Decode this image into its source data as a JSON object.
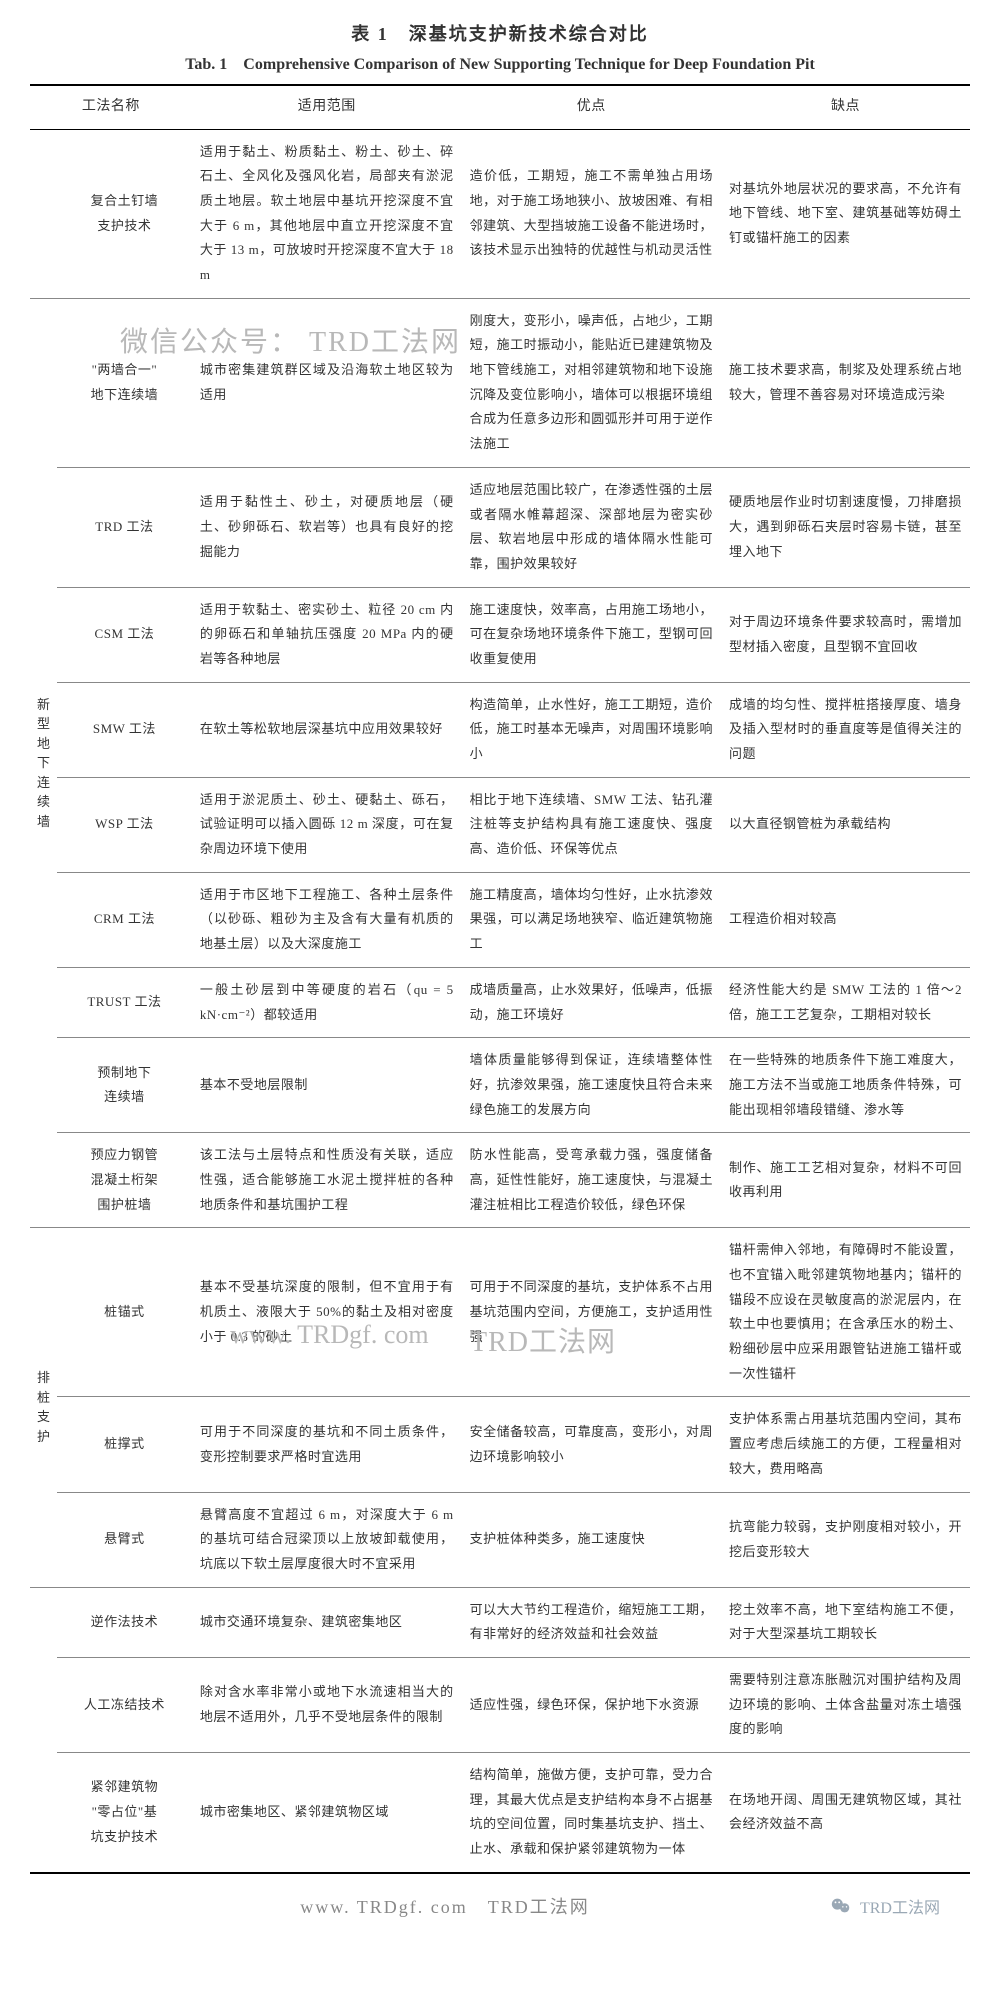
{
  "title_cn": "表 1　深基坑支护新技术综合对比",
  "title_en": "Tab. 1　Comprehensive Comparison of New Supporting Technique for Deep Foundation Pit",
  "headers": {
    "name": "工法名称",
    "scope": "适用范围",
    "advantages": "优点",
    "disadvantages": "缺点"
  },
  "groups": [
    {
      "label": null,
      "rows": [
        {
          "name": "复合土钉墙支护技术",
          "scope": "适用于黏土、粉质黏土、粉土、砂土、碎石土、全风化及强风化岩，局部夹有淤泥质土地层。软土地层中基坑开挖深度不宜大于 6 m，其他地层中直立开挖深度不宜大于 13 m，可放坡时开挖深度不宜大于 18 m",
          "adv": "造价低，工期短，施工不需单独占用场地，对于施工场地狭小、放坡困难、有相邻建筑、大型挡坡施工设备不能进场时，该技术显示出独特的优越性与机动灵活性",
          "dis": "对基坑外地层状况的要求高，不允许有地下管线、地下室、建筑基础等妨碍土钉或锚杆施工的因素"
        }
      ]
    },
    {
      "label": "新型地下连续墙",
      "rows": [
        {
          "name": "\"两墙合一\"地下连续墙",
          "scope": "城市密集建筑群区域及沿海软土地区较为适用",
          "adv": "刚度大，变形小，噪声低，占地少，工期短，施工时振动小，能贴近已建建筑物及地下管线施工，对相邻建筑物和地下设施沉降及变位影响小，墙体可以根据环境组合成为任意多边形和圆弧形并可用于逆作法施工",
          "dis": "施工技术要求高，制浆及处理系统占地较大，管理不善容易对环境造成污染"
        },
        {
          "name": "TRD 工法",
          "scope": "适用于黏性土、砂土，对硬质地层（硬土、砂卵砾石、软岩等）也具有良好的挖掘能力",
          "adv": "适应地层范围比较广，在渗透性强的土层或者隔水帷幕超深、深部地层为密实砂层、软岩地层中形成的墙体隔水性能可靠，围护效果较好",
          "dis": "硬质地层作业时切割速度慢，刀排磨损大，遇到卵砾石夹层时容易卡链，甚至埋入地下"
        },
        {
          "name": "CSM 工法",
          "scope": "适用于软黏土、密实砂土、粒径 20 cm 内的卵砾石和单轴抗压强度 20 MPa 内的硬岩等各种地层",
          "adv": "施工速度快，效率高，占用施工场地小，可在复杂场地环境条件下施工，型钢可回收重复使用",
          "dis": "对于周边环境条件要求较高时，需增加型材插入密度，且型钢不宜回收"
        },
        {
          "name": "SMW 工法",
          "scope": "在软土等松软地层深基坑中应用效果较好",
          "adv": "构造简单，止水性好，施工工期短，造价低，施工时基本无噪声，对周围环境影响小",
          "dis": "成墙的均匀性、搅拌桩搭接厚度、墙身及插入型材时的垂直度等是值得关注的问题"
        },
        {
          "name": "WSP 工法",
          "scope": "适用于淤泥质土、砂土、硬黏土、砾石，试验证明可以插入圆砾 12 m 深度，可在复杂周边环境下使用",
          "adv": "相比于地下连续墙、SMW 工法、钻孔灌注桩等支护结构具有施工速度快、强度高、造价低、环保等优点",
          "dis": "以大直径钢管桩为承载结构"
        },
        {
          "name": "CRM 工法",
          "scope": "适用于市区地下工程施工、各种土层条件（以砂砾、粗砂为主及含有大量有机质的地基土层）以及大深度施工",
          "adv": "施工精度高，墙体均匀性好，止水抗渗效果强，可以满足场地狭窄、临近建筑物施工",
          "dis": "工程造价相对较高"
        },
        {
          "name": "TRUST 工法",
          "scope": "一般土砂层到中等硬度的岩石（qu = 5 kN·cm⁻²）都较适用",
          "adv": "成墙质量高，止水效果好，低噪声，低振动，施工环境好",
          "dis": "经济性能大约是 SMW 工法的 1 倍～2 倍，施工工艺复杂，工期相对较长"
        },
        {
          "name": "预制地下连续墙",
          "scope": "基本不受地层限制",
          "adv": "墙体质量能够得到保证，连续墙整体性好，抗渗效果强，施工速度快且符合未来绿色施工的发展方向",
          "dis": "在一些特殊的地质条件下施工难度大，施工方法不当或施工地质条件特殊，可能出现相邻墙段错缝、渗水等"
        },
        {
          "name": "预应力钢管混凝土桁架围护桩墙",
          "scope": "该工法与土层特点和性质没有关联，适应性强，适合能够施工水泥土搅拌桩的各种地质条件和基坑围护工程",
          "adv": "防水性能高，受弯承载力强，强度储备高，延性性能好，施工速度快，与混凝土灌注桩相比工程造价较低，绿色环保",
          "dis": "制作、施工工艺相对复杂，材料不可回收再利用"
        }
      ]
    },
    {
      "label": "排桩支护",
      "rows": [
        {
          "name": "桩锚式",
          "scope": "基本不受基坑深度的限制，但不宜用于有机质土、液限大于 50%的黏土及相对密度小于 0.3 的砂土",
          "adv": "可用于不同深度的基坑，支护体系不占用基坑范围内空间，方便施工，支护适用性强",
          "dis": "锚杆需伸入邻地，有障碍时不能设置，也不宜锚入毗邻建筑物地基内；锚杆的锚段不应设在灵敏度高的淤泥层内，在软土中也要慎用；在含承压水的粉土、粉细砂层中应采用跟管钻进施工锚杆或一次性锚杆"
        },
        {
          "name": "桩撑式",
          "scope": "可用于不同深度的基坑和不同土质条件，变形控制要求严格时宜选用",
          "adv": "安全储备较高，可靠度高，变形小，对周边环境影响较小",
          "dis": "支护体系需占用基坑范围内空间，其布置应考虑后续施工的方便，工程量相对较大，费用略高"
        },
        {
          "name": "悬臂式",
          "scope": "悬臂高度不宜超过 6 m，对深度大于 6 m 的基坑可结合冠梁顶以上放坡卸载使用，坑底以下软土层厚度很大时不宜采用",
          "adv": "支护桩体种类多，施工速度快",
          "dis": "抗弯能力较弱，支护刚度相对较小，开挖后变形较大"
        }
      ]
    },
    {
      "label": null,
      "rows": [
        {
          "name": "逆作法技术",
          "scope": "城市交通环境复杂、建筑密集地区",
          "adv": "可以大大节约工程造价，缩短施工工期，有非常好的经济效益和社会效益",
          "dis": "挖土效率不高，地下室结构施工不便，对于大型深基坑工期较长"
        },
        {
          "name": "人工冻结技术",
          "scope": "除对含水率非常小或地下水流速相当大的地层不适用外，几乎不受地层条件的限制",
          "adv": "适应性强，绿色环保，保护地下水资源",
          "dis": "需要特别注意冻胀融沉对围护结构及周边环境的影响、土体含盐量对冻土墙强度的影响"
        },
        {
          "name": "紧邻建筑物\"零占位\"基坑支护技术",
          "scope": "城市密集地区、紧邻建筑物区域",
          "adv": "结构简单，施做方便，支护可靠，受力合理，其最大优点是支护结构本身不占据基坑的空间位置，同时集基坑支护、挡土、止水、承载和保护紧邻建筑物为一体",
          "dis": "在场地开阔、周围无建筑物区域，其社会经济效益不高"
        }
      ]
    }
  ],
  "watermarks": {
    "wm1": "微信公众号：  TRD工法网",
    "wm2": "www. TRDgf. com",
    "wm3": "TRD工法网"
  },
  "footer": {
    "center": "www. TRDgf. com　TRD工法网",
    "right": "TRD工法网"
  }
}
